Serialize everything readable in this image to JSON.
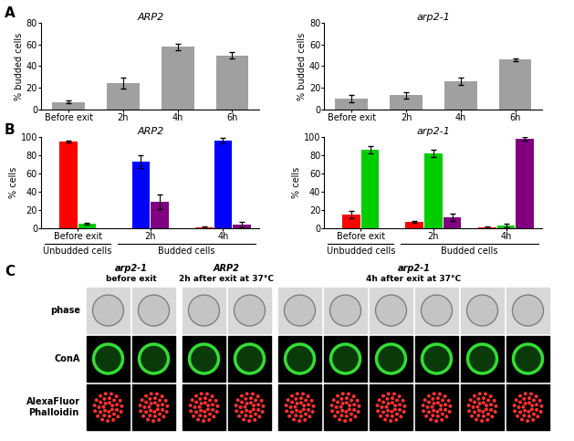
{
  "chart_data": [
    {
      "type": "bar",
      "title": "ARP2",
      "ylabel": "% budded cells",
      "categories": [
        "Before exit",
        "2h",
        "4h",
        "6h"
      ],
      "values": [
        7,
        24,
        58,
        50
      ],
      "errors": [
        1,
        5,
        3,
        3
      ],
      "color": "#a0a0a0",
      "ylim": [
        0,
        80
      ],
      "yticks": [
        0,
        20,
        40,
        60,
        80
      ]
    },
    {
      "type": "bar",
      "title": "arp2-1",
      "ylabel": "% budded cells",
      "categories": [
        "Before exit",
        "2h",
        "4h",
        "6h"
      ],
      "values": [
        10,
        13,
        26,
        46
      ],
      "errors": [
        3,
        3,
        3,
        1.5
      ],
      "color": "#a0a0a0",
      "ylim": [
        0,
        80
      ],
      "yticks": [
        0,
        20,
        40,
        60,
        80
      ]
    },
    {
      "type": "bar",
      "title": "ARP2",
      "ylabel": "% cells",
      "categories": [
        "Before exit",
        "2h",
        "4h"
      ],
      "x_groups": [
        {
          "label": "Unbudded cells",
          "from": 0,
          "to": 0
        },
        {
          "label": "Budded cells",
          "from": 1,
          "to": 2
        }
      ],
      "series": [
        {
          "color": "#ff0000",
          "values": [
            95,
            null,
            1
          ],
          "errors": [
            1,
            null,
            1
          ]
        },
        {
          "color": "#00cc00",
          "values": [
            5,
            null,
            null
          ],
          "errors": [
            1,
            null,
            null
          ]
        },
        {
          "color": "#0000ff",
          "values": [
            null,
            73,
            96
          ],
          "errors": [
            null,
            7,
            3
          ]
        },
        {
          "color": "#800080",
          "values": [
            null,
            29,
            4
          ],
          "errors": [
            null,
            8,
            3
          ]
        }
      ],
      "ylim": [
        0,
        100
      ],
      "yticks": [
        0,
        20,
        40,
        60,
        80,
        100
      ]
    },
    {
      "type": "bar",
      "title": "arp2-1",
      "ylabel": "% cells",
      "categories": [
        "Before exit",
        "2h",
        "4h"
      ],
      "x_groups": [
        {
          "label": "Unbudded cells",
          "from": 0,
          "to": 0
        },
        {
          "label": "Budded cells",
          "from": 1,
          "to": 2
        }
      ],
      "series": [
        {
          "color": "#ff0000",
          "values": [
            15,
            7,
            1
          ],
          "errors": [
            4,
            1,
            1
          ]
        },
        {
          "color": "#00cc00",
          "values": [
            86,
            82,
            3
          ],
          "errors": [
            4,
            4,
            2
          ]
        },
        {
          "color": "#800080",
          "values": [
            null,
            12,
            98
          ],
          "errors": [
            null,
            4,
            2
          ]
        }
      ],
      "ylim": [
        0,
        100
      ],
      "yticks": [
        0,
        20,
        40,
        60,
        80,
        100
      ]
    }
  ],
  "panel_labels": [
    "A",
    "B",
    "C"
  ],
  "image_panel": {
    "column_groups": [
      {
        "strain": "arp2-1",
        "condition": "before exit",
        "columns": 2
      },
      {
        "strain": "ARP2",
        "condition": "2h after exit at 37°C",
        "columns": 2
      },
      {
        "strain": "arp2-1",
        "condition": "4h after exit at 37°C",
        "columns": 6
      }
    ],
    "rows": [
      "phase",
      "ConA",
      "AlexaFluor\nPhalloidin"
    ]
  }
}
